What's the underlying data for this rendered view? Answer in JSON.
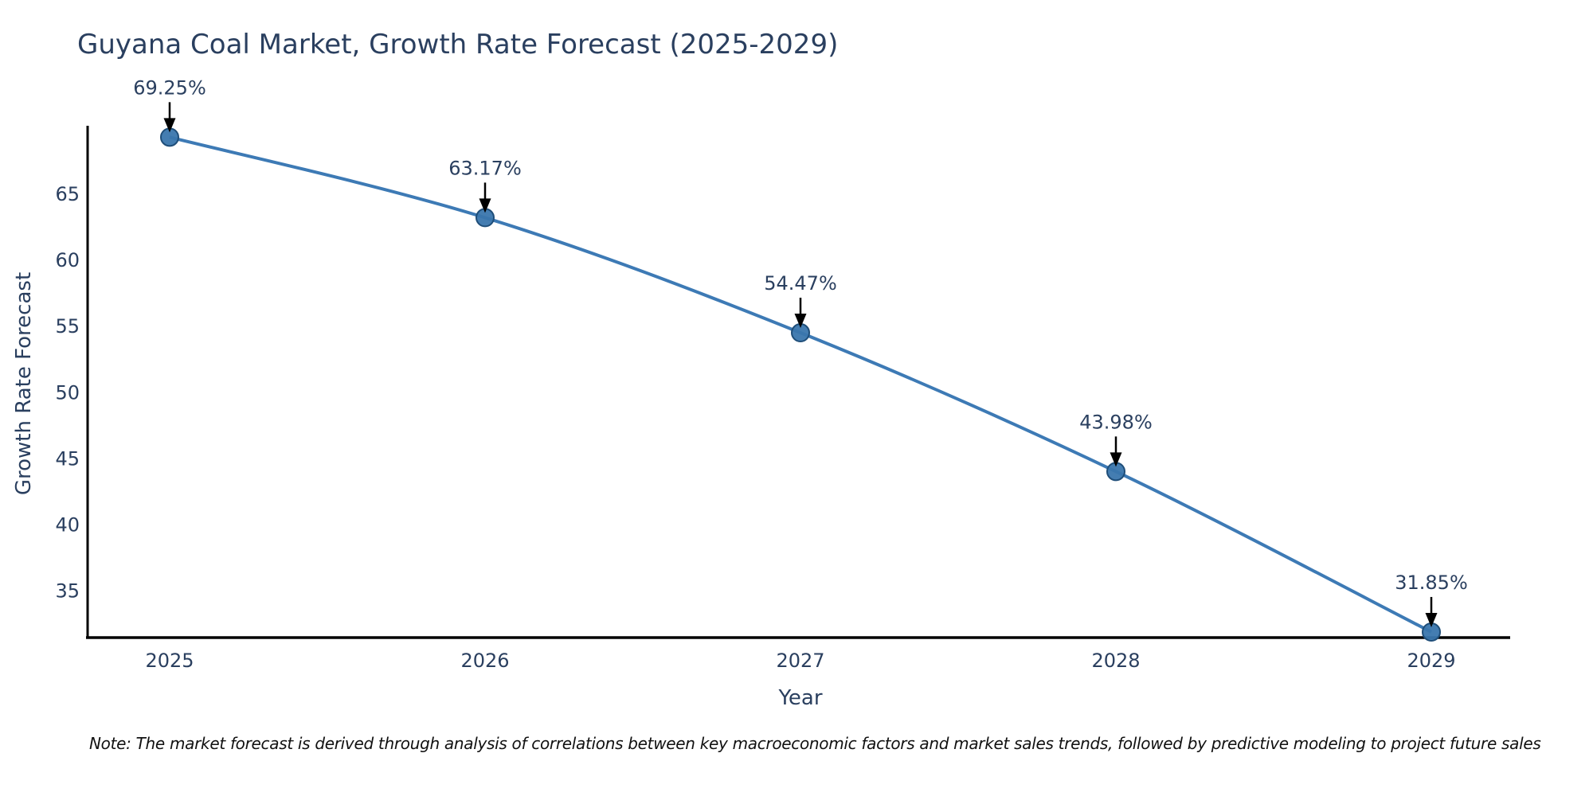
{
  "chart_data": {
    "type": "line",
    "title": "Guyana Coal Market, Growth Rate Forecast (2025-2029)",
    "x": [
      2025,
      2026,
      2027,
      2028,
      2029
    ],
    "series": [
      {
        "name": "Growth Rate Forecast",
        "values": [
          69.25,
          63.17,
          54.47,
          43.98,
          31.85
        ]
      }
    ],
    "point_labels": [
      "69.25%",
      "63.17%",
      "54.47%",
      "43.98%",
      "31.85%"
    ],
    "xlabel": "Year",
    "ylabel": "Growth Rate Forecast",
    "x_tick_labels": [
      "2025",
      "2026",
      "2027",
      "2028",
      "2029"
    ],
    "y_ticks": [
      35,
      40,
      45,
      50,
      55,
      60,
      65
    ],
    "ylim": [
      31.5,
      70.1
    ],
    "grid": false,
    "legend": false,
    "line_shape": "spline",
    "colors": {
      "line": "#3d7ab5",
      "marker_fill": "#3a76ad",
      "marker_edge": "#1f4e79",
      "text": "#2a3f5f",
      "axis": "#000000",
      "arrow": "#000000",
      "note": "#111111"
    }
  },
  "footnote": "Note: The market forecast is derived through analysis of correlations between key macroeconomic factors and market sales trends, followed by predictive modeling to project future sales"
}
